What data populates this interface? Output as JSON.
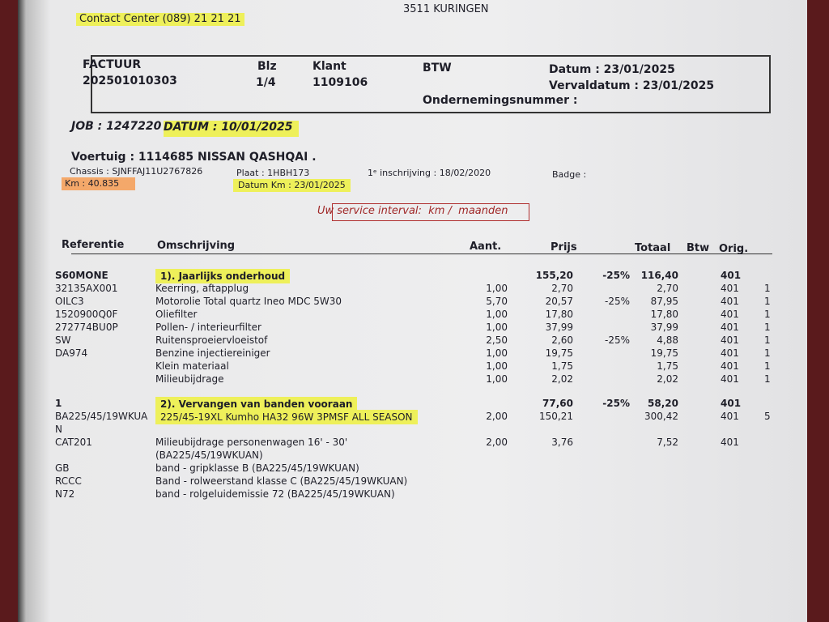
{
  "header": {
    "address": "3511 KURINGEN",
    "contact": "Contact Center (089) 21 21 21"
  },
  "invoice_box": {
    "factuur_label": "FACTUUR",
    "factuur_number": "202501010303",
    "blz_label": "Blz",
    "blz": "1/4",
    "klant_label": "Klant",
    "klant": "1109106",
    "btw_label": "BTW",
    "datum": "Datum : 23/01/2025",
    "vervaldatum": "Vervaldatum : 23/01/2025",
    "ondernemingsnummer": "Ondernemingsnummer :"
  },
  "job": {
    "job": "JOB : 1247220",
    "datum": "DATUM : 10/01/2025"
  },
  "vehicle": {
    "title": "Voertuig : 1114685 NISSAN QASHQAI .",
    "chassis": "Chassis : SJNFFAJ11U2767826",
    "plaat": "Plaat : 1HBH173",
    "inschrijving": "1ᵉ inschrijving : 18/02/2020",
    "badge": "Badge :",
    "km": "Km : 40.835",
    "datum_km": "Datum Km : 23/01/2025"
  },
  "service_interval": "Uw service interval:  km /  maanden",
  "table": {
    "header": {
      "ref": "Referentie",
      "desc": "Omschrijving",
      "aant": "Aant.",
      "prijs": "Prijs",
      "totaal": "Totaal",
      "btw": "Btw",
      "orig": "Orig."
    },
    "rows": [
      {
        "ref": "S60MONE",
        "desc": "1). Jaarlijks onderhoud",
        "prijs": "155,20",
        "korting": "-25%",
        "totaal": "116,40",
        "btw": "401",
        "highlight": true
      },
      {
        "ref": "32135AX001",
        "desc": "Keerring, aftapplug",
        "aant": "1,00",
        "prijs": "2,70",
        "totaal": "2,70",
        "btw": "401",
        "orig": "1"
      },
      {
        "ref": "OILC3",
        "desc": "Motorolie Total quartz Ineo MDC 5W30",
        "aant": "5,70",
        "prijs": "20,57",
        "korting": "-25%",
        "totaal": "87,95",
        "btw": "401",
        "orig": "1"
      },
      {
        "ref": "1520900Q0F",
        "desc": "Oliefilter",
        "aant": "1,00",
        "prijs": "17,80",
        "totaal": "17,80",
        "btw": "401",
        "orig": "1"
      },
      {
        "ref": "272774BU0P",
        "desc": "Pollen- / interieurfilter",
        "aant": "1,00",
        "prijs": "37,99",
        "totaal": "37,99",
        "btw": "401",
        "orig": "1"
      },
      {
        "ref": "SW",
        "desc": "Ruitensproeiervloeistof",
        "aant": "2,50",
        "prijs": "2,60",
        "korting": "-25%",
        "totaal": "4,88",
        "btw": "401",
        "orig": "1"
      },
      {
        "ref": "DA974",
        "desc": "Benzine injectiereiniger",
        "aant": "1,00",
        "prijs": "19,75",
        "totaal": "19,75",
        "btw": "401",
        "orig": "1"
      },
      {
        "desc": "Klein materiaal",
        "aant": "1,00",
        "prijs": "1,75",
        "totaal": "1,75",
        "btw": "401",
        "orig": "1"
      },
      {
        "desc": "Milieubijdrage",
        "aant": "1,00",
        "prijs": "2,02",
        "totaal": "2,02",
        "btw": "401",
        "orig": "1"
      },
      {
        "ref": "1",
        "desc": "2). Vervangen van banden vooraan",
        "prijs": "77,60",
        "korting": "-25%",
        "totaal": "58,20",
        "btw": "401",
        "highlight": true
      },
      {
        "ref": "BA225/45/19WKUA\nN",
        "desc": "225/45-19XL Kumho HA32 96W 3PMSF ALL SEASON",
        "aant": "2,00",
        "prijs": "150,21",
        "totaal": "300,42",
        "btw": "401",
        "orig": "5",
        "highlight": true
      },
      {
        "ref": "CAT201",
        "desc": "Milieubijdrage personenwagen 16' - 30'\n(BA225/45/19WKUAN)",
        "aant": "2,00",
        "prijs": "3,76",
        "totaal": "7,52",
        "btw": "401"
      },
      {
        "ref": "GB",
        "desc": "band - gripklasse B (BA225/45/19WKUAN)"
      },
      {
        "ref": "RCCC",
        "desc": "Band - rolweerstand klasse C (BA225/45/19WKUAN)"
      },
      {
        "ref": "N72",
        "desc": "band - rolgeluidemissie 72 (BA225/45/19WKUAN)"
      }
    ]
  }
}
